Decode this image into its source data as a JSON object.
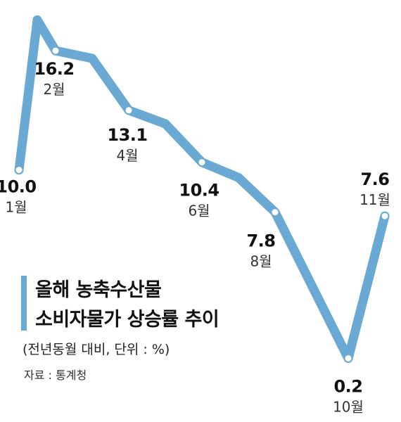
{
  "colors": {
    "line": "#6aa9d3",
    "marker_fill": "#ffffff",
    "accent_bar": "#6aa9d3"
  },
  "title_lines": [
    "올해 농축수산물",
    "소비자물가 상승률 추이"
  ],
  "subtitle": "(전년동월 대비, 단위 : %)",
  "source": "자료 : 통계청",
  "chart_data": {
    "type": "line",
    "title": "올해 농축수산물 소비자물가 상승률 추이",
    "subtitle": "(전년동월 대비, 단위 : %)",
    "x": [
      1,
      1.5,
      2,
      3,
      4,
      5,
      6,
      7,
      8,
      9,
      10,
      11
    ],
    "y": [
      10.0,
      17.8,
      16.2,
      15.8,
      13.1,
      12.4,
      10.4,
      9.6,
      7.8,
      4.0,
      0.2,
      7.6
    ],
    "ylim": [
      0,
      18
    ],
    "labeled_points": [
      {
        "value": "10.0",
        "month": "1월",
        "x": 1,
        "y": 10.0
      },
      {
        "value": "16.2",
        "month": "2월",
        "x": 2,
        "y": 16.2
      },
      {
        "value": "13.1",
        "month": "4월",
        "x": 4,
        "y": 13.1
      },
      {
        "value": "10.4",
        "month": "6월",
        "x": 6,
        "y": 10.4
      },
      {
        "value": "7.8",
        "month": "8월",
        "x": 8,
        "y": 7.8
      },
      {
        "value": "0.2",
        "month": "10월",
        "x": 10,
        "y": 0.2
      },
      {
        "value": "7.6",
        "month": "11월",
        "x": 11,
        "y": 7.6
      }
    ],
    "grid": false,
    "legend": "none",
    "source": "자료 : 통계청"
  }
}
